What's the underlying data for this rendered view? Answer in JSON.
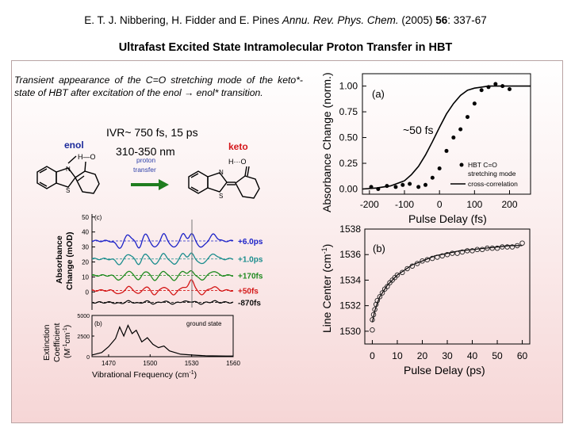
{
  "citation": {
    "authors": "E. T. J. Nibbering, H. Fidder and E. Pines",
    "journal": "Annu. Rev. Phys. Chem.",
    "year": "(2005)",
    "volume": "56",
    "pages": ": 337-67"
  },
  "slide_title": "Ultrafast Excited State Intramolecular Proton Transfer in HBT",
  "description": "Transient appearance of the C=O stretching mode of the keto*-state of HBT after excitation of the enol → enol* transition.",
  "annotations": {
    "ivr": "IVR~ 750 fs, 15 ps",
    "wavelength": "310-350 nm",
    "fs50": "~50 fs"
  },
  "scheme": {
    "enol_label": "enol",
    "keto_label": "keto",
    "arrow_label_1": "proton",
    "arrow_label_2": "transfer",
    "colors": {
      "enol": "#1b2a9a",
      "keto": "#d4161a",
      "arrow": "#1f7d1f",
      "arrow_text": "#2c3fa8"
    }
  },
  "chart_data": [
    {
      "id": "a",
      "type": "scatter",
      "panel_label": "(a)",
      "xlabel": "Pulse Delay (fs)",
      "ylabel": "Absorbance Change (norm.)",
      "xlim": [
        -220,
        260
      ],
      "ylim": [
        -0.05,
        1.12
      ],
      "xticks": [
        "-200",
        "-100",
        "0",
        "100",
        "200"
      ],
      "yticks": [
        "0.00",
        "0.25",
        "0.50",
        "0.75",
        "1.00"
      ],
      "legend": [
        "HBT C=O",
        "stretching mode",
        "cross-correlation"
      ],
      "legend_position": "bottom-right",
      "series": [
        {
          "name": "HBT C=O stretching mode",
          "type": "scatter",
          "x": [
            -195,
            -175,
            -150,
            -125,
            -105,
            -85,
            -60,
            -40,
            -20,
            0,
            20,
            40,
            60,
            80,
            100,
            120,
            140,
            160,
            180,
            200
          ],
          "y": [
            0.02,
            0.0,
            0.03,
            0.02,
            0.04,
            0.05,
            0.02,
            0.04,
            0.11,
            0.2,
            0.37,
            0.5,
            0.58,
            0.7,
            0.83,
            0.96,
            0.99,
            1.02,
            1.0,
            0.97
          ]
        },
        {
          "name": "cross-correlation",
          "type": "line",
          "x": [
            -220,
            -180,
            -140,
            -100,
            -80,
            -60,
            -40,
            -20,
            0,
            20,
            40,
            60,
            80,
            100,
            120,
            140,
            160,
            200,
            260
          ],
          "y": [
            0.0,
            0.01,
            0.03,
            0.08,
            0.14,
            0.22,
            0.33,
            0.46,
            0.6,
            0.73,
            0.83,
            0.91,
            0.96,
            0.98,
            0.99,
            1.0,
            1.0,
            1.0,
            1.0
          ]
        }
      ]
    },
    {
      "id": "b",
      "type": "scatter",
      "panel_label": "(b)",
      "xlabel": "Pulse Delay (ps)",
      "ylabel": "Line Center (cm-1)",
      "xlim": [
        -3,
        63
      ],
      "ylim": [
        1529,
        1538
      ],
      "xticks": [
        "0",
        "10",
        "20",
        "30",
        "40",
        "50",
        "60"
      ],
      "yticks": [
        "1530",
        "1532",
        "1534",
        "1536",
        "1538"
      ],
      "series": [
        {
          "name": "data",
          "type": "scatter",
          "x": [
            0,
            0,
            0.5,
            1,
            1.5,
            2,
            3,
            4,
            5,
            6,
            7,
            8,
            9,
            10,
            12,
            14,
            16,
            18,
            20,
            22,
            24,
            26,
            28,
            30,
            32,
            34,
            36,
            38,
            40,
            42,
            44,
            46,
            48,
            50,
            52,
            54,
            56,
            58,
            60
          ],
          "y": [
            1530.1,
            1530.9,
            1531.3,
            1531.7,
            1532.1,
            1532.4,
            1532.7,
            1533.0,
            1533.3,
            1533.5,
            1533.8,
            1534.0,
            1534.2,
            1534.4,
            1534.6,
            1534.9,
            1535.1,
            1535.3,
            1535.5,
            1535.6,
            1535.7,
            1535.8,
            1535.9,
            1536.0,
            1536.1,
            1536.1,
            1536.2,
            1536.3,
            1536.3,
            1536.4,
            1536.4,
            1536.5,
            1536.5,
            1536.5,
            1536.6,
            1536.6,
            1536.6,
            1536.7,
            1536.9
          ]
        },
        {
          "name": "fit",
          "type": "line",
          "x": [
            0,
            1,
            2,
            3,
            4,
            6,
            8,
            10,
            13,
            16,
            20,
            25,
            30,
            35,
            40,
            45,
            50,
            55,
            60
          ],
          "y": [
            1530.7,
            1531.6,
            1532.2,
            1532.7,
            1533.0,
            1533.6,
            1534.0,
            1534.4,
            1534.8,
            1535.2,
            1535.5,
            1535.9,
            1536.1,
            1536.3,
            1536.4,
            1536.5,
            1536.6,
            1536.7,
            1536.7
          ]
        }
      ]
    },
    {
      "id": "c",
      "type": "line",
      "panel_label": "(c)",
      "xlabel": "",
      "ylabel": "Absorbance Change (mOD)",
      "xlim": [
        1458,
        1560
      ],
      "ylim": [
        -12,
        52
      ],
      "yticks": [
        "0",
        "10",
        "20",
        "30",
        "40",
        "50"
      ],
      "series": [
        {
          "name": "+6.0ps",
          "color": "#1c22c8",
          "baseline": 34
        },
        {
          "name": "+1.0ps",
          "color": "#1a8d8d",
          "baseline": 22
        },
        {
          "name": "+170fs",
          "color": "#1f8a1f",
          "baseline": 11
        },
        {
          "name": "+50fs",
          "color": "#d41818",
          "baseline": 1
        },
        {
          "name": "-870fs",
          "color": "#111111",
          "baseline": -7
        }
      ]
    },
    {
      "id": "d",
      "type": "line",
      "panel_label": "(b)",
      "annotation": "ground state",
      "xlabel": "Vibrational Frequency (cm-1)",
      "ylabel": "Extinction Coefficient (M-1cm-1)",
      "xlim": [
        1458,
        1560
      ],
      "ylim": [
        0,
        5000
      ],
      "xticks": [
        "1470",
        "1500",
        "1530",
        "1560"
      ],
      "yticks": [
        "0",
        "2500",
        "5000"
      ],
      "series": [
        {
          "name": "ground state",
          "type": "line",
          "x": [
            1458,
            1465,
            1470,
            1475,
            1478,
            1481,
            1484,
            1487,
            1490,
            1494,
            1498,
            1502,
            1506,
            1510,
            1514,
            1518,
            1522,
            1526,
            1530,
            1535,
            1540,
            1545,
            1550,
            1555,
            1560
          ],
          "y": [
            200,
            500,
            1200,
            2200,
            3600,
            2500,
            3800,
            2800,
            3200,
            1800,
            2300,
            1500,
            1100,
            1300,
            700,
            500,
            300,
            250,
            200,
            150,
            120,
            100,
            90,
            80,
            80
          ]
        }
      ]
    }
  ],
  "labels": {
    "a_ylabel": "Absorbance Change (norm.)",
    "b_ylabel_main": "Line Center (cm",
    "b_ylabel_sup": "-1",
    "b_ylabel_end": ")",
    "c_ylabel_1": "Absorbance",
    "c_ylabel_2": "Change (mOD)",
    "d_ylabel_1": "Extinction",
    "d_ylabel_2": "Coefficient",
    "d_ylabel_3a": "(M",
    "d_ylabel_3b": "-1",
    "d_ylabel_3c": "cm",
    "d_ylabel_3d": "-1",
    "d_ylabel_3e": ")",
    "d_xlabel_main": "Vibrational Frequency (cm",
    "d_xlabel_sup": "-1",
    "d_xlabel_end": ")"
  }
}
